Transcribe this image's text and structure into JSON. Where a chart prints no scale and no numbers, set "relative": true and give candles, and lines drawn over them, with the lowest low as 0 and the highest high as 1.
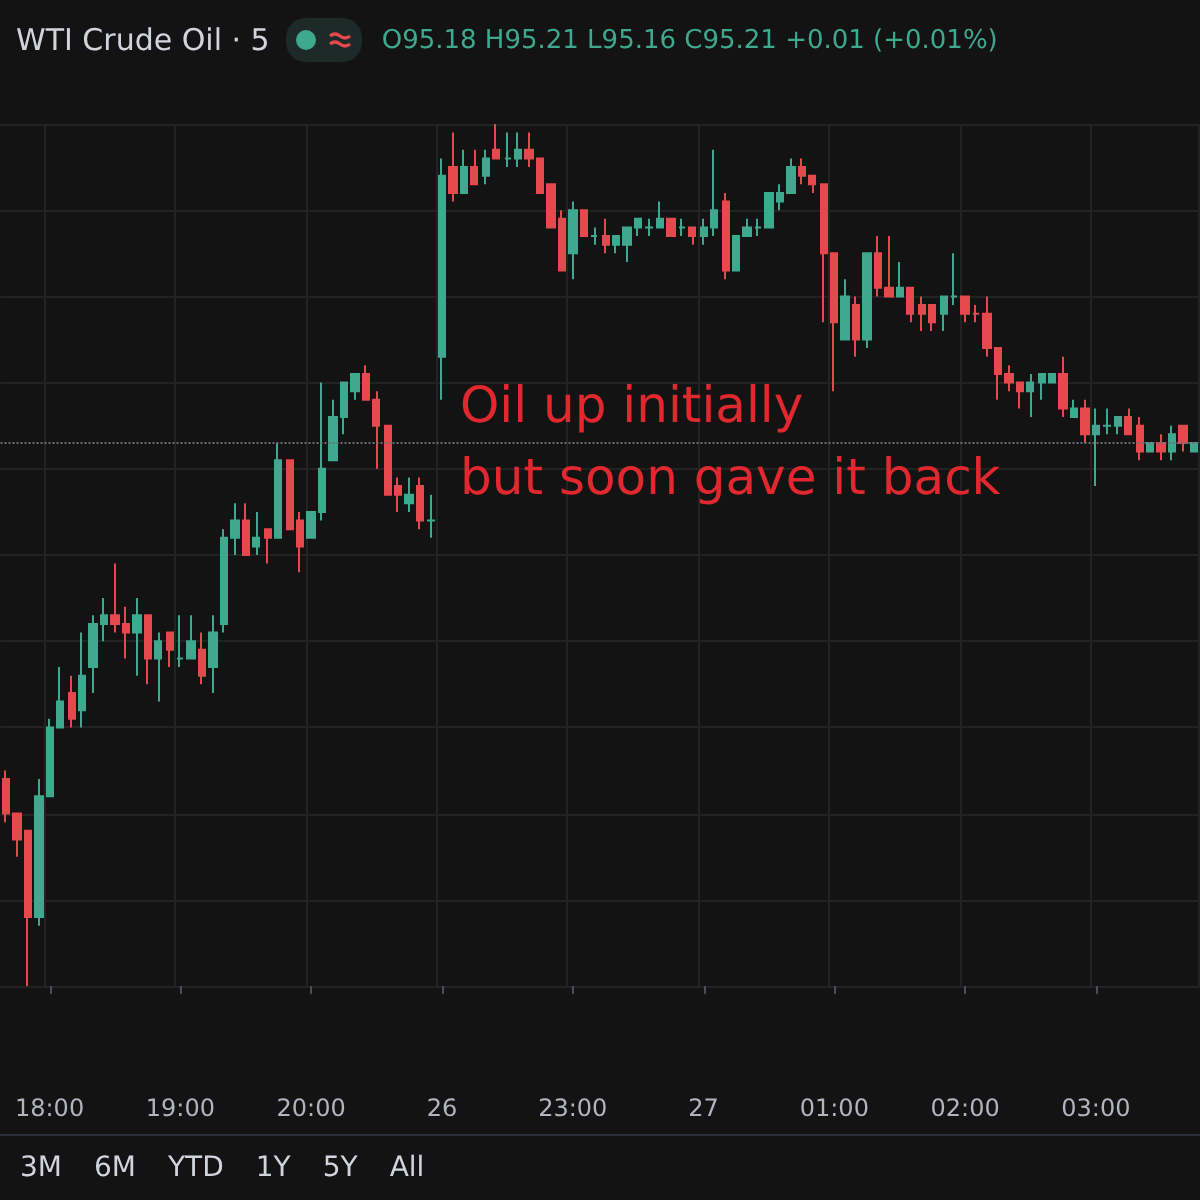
{
  "chart_data": {
    "type": "candlestick",
    "title": "WTI Crude Oil · 5",
    "subtitle": "O95.18 H95.21 L95.16 C95.21 +0.01 (+0.01%)",
    "relative": true,
    "grid": true,
    "annotations": [
      "Oil up initially\nbut soon gave it back",
      "3M",
      "6M",
      "YTD",
      "1Y",
      "5Y",
      "All"
    ],
    "categories": [
      null,
      null,
      null,
      null,
      "18:00",
      null,
      null,
      null,
      null,
      null,
      null,
      null,
      null,
      null,
      null,
      null,
      "19:00",
      null,
      null,
      null,
      null,
      null,
      null,
      null,
      null,
      null,
      null,
      null,
      "20:00",
      null,
      null,
      null,
      null,
      null,
      null,
      null,
      null,
      null,
      null,
      null,
      "26",
      null,
      null,
      null,
      null,
      null,
      null,
      null,
      null,
      null,
      null,
      null,
      "23:00",
      null,
      null,
      null,
      null,
      null,
      null,
      null,
      null,
      null,
      null,
      null,
      "27",
      null,
      null,
      null,
      null,
      null,
      null,
      null,
      null,
      null,
      null,
      null,
      "01:00",
      null,
      null,
      null,
      null,
      null,
      null,
      null,
      null,
      null,
      null,
      null,
      "02:00",
      null,
      null,
      null,
      null,
      null,
      null,
      null,
      null,
      null,
      null,
      null,
      "03:00",
      null,
      null,
      null,
      null,
      null,
      null,
      null,
      null,
      null
    ],
    "ohlc": [
      [
        0.24,
        0.25,
        0.19,
        0.2
      ],
      [
        0.2,
        0.2,
        0.15,
        0.17
      ],
      [
        0.18,
        0.18,
        0,
        0.08
      ],
      [
        0.08,
        0.24,
        0.07,
        0.22
      ],
      [
        0.22,
        0.31,
        0.22,
        0.3
      ],
      [
        0.3,
        0.37,
        0.3,
        0.33
      ],
      [
        0.34,
        0.36,
        0.3,
        0.31
      ],
      [
        0.32,
        0.41,
        0.3,
        0.36
      ],
      [
        0.37,
        0.43,
        0.34,
        0.42
      ],
      [
        0.42,
        0.45,
        0.4,
        0.43
      ],
      [
        0.43,
        0.49,
        0.41,
        0.42
      ],
      [
        0.42,
        0.44,
        0.38,
        0.41
      ],
      [
        0.41,
        0.45,
        0.36,
        0.43
      ],
      [
        0.43,
        0.43,
        0.35,
        0.38
      ],
      [
        0.38,
        0.41,
        0.33,
        0.4
      ],
      [
        0.41,
        0.41,
        0.37,
        0.39
      ],
      [
        0.38,
        0.43,
        0.37,
        0.38
      ],
      [
        0.38,
        0.43,
        0.38,
        0.4
      ],
      [
        0.39,
        0.41,
        0.35,
        0.36
      ],
      [
        0.37,
        0.43,
        0.34,
        0.41
      ],
      [
        0.42,
        0.53,
        0.41,
        0.52
      ],
      [
        0.52,
        0.56,
        0.5,
        0.54
      ],
      [
        0.54,
        0.56,
        0.5,
        0.5
      ],
      [
        0.51,
        0.55,
        0.5,
        0.52
      ],
      [
        0.53,
        0.53,
        0.49,
        0.52
      ],
      [
        0.52,
        0.63,
        0.52,
        0.61
      ],
      [
        0.61,
        0.61,
        0.53,
        0.53
      ],
      [
        0.54,
        0.55,
        0.48,
        0.51
      ],
      [
        0.52,
        0.55,
        0.52,
        0.55
      ],
      [
        0.55,
        0.7,
        0.54,
        0.6
      ],
      [
        0.61,
        0.68,
        0.61,
        0.66
      ],
      [
        0.66,
        0.7,
        0.64,
        0.7
      ],
      [
        0.69,
        0.71,
        0.68,
        0.71
      ],
      [
        0.71,
        0.72,
        0.68,
        0.68
      ],
      [
        0.68,
        0.69,
        0.6,
        0.65
      ],
      [
        0.65,
        0.65,
        0.57,
        0.57
      ],
      [
        0.58,
        0.59,
        0.55,
        0.57
      ],
      [
        0.56,
        0.59,
        0.55,
        0.57
      ],
      [
        0.58,
        0.59,
        0.53,
        0.54
      ],
      [
        0.54,
        0.57,
        0.52,
        0.54
      ],
      [
        0.73,
        0.96,
        0.68,
        0.94
      ],
      [
        0.95,
        0.99,
        0.91,
        0.92
      ],
      [
        0.92,
        0.97,
        0.92,
        0.95
      ],
      [
        0.95,
        0.97,
        0.93,
        0.93
      ],
      [
        0.94,
        0.97,
        0.93,
        0.96
      ],
      [
        0.97,
        1.0,
        0.96,
        0.96
      ],
      [
        0.96,
        0.99,
        0.95,
        0.96
      ],
      [
        0.96,
        0.99,
        0.95,
        0.97
      ],
      [
        0.97,
        0.99,
        0.95,
        0.96
      ],
      [
        0.96,
        0.96,
        0.92,
        0.92
      ],
      [
        0.93,
        0.93,
        0.88,
        0.88
      ],
      [
        0.89,
        0.9,
        0.83,
        0.83
      ],
      [
        0.85,
        0.91,
        0.82,
        0.9
      ],
      [
        0.9,
        0.9,
        0.87,
        0.87
      ],
      [
        0.87,
        0.88,
        0.86,
        0.87
      ],
      [
        0.87,
        0.89,
        0.85,
        0.86
      ],
      [
        0.86,
        0.87,
        0.85,
        0.87
      ],
      [
        0.86,
        0.88,
        0.84,
        0.88
      ],
      [
        0.88,
        0.89,
        0.87,
        0.89
      ],
      [
        0.88,
        0.89,
        0.87,
        0.88
      ],
      [
        0.88,
        0.91,
        0.88,
        0.89
      ],
      [
        0.89,
        0.89,
        0.87,
        0.87
      ],
      [
        0.88,
        0.89,
        0.87,
        0.88
      ],
      [
        0.88,
        0.88,
        0.86,
        0.87
      ],
      [
        0.87,
        0.89,
        0.86,
        0.88
      ],
      [
        0.88,
        0.97,
        0.87,
        0.9
      ],
      [
        0.91,
        0.92,
        0.82,
        0.83
      ],
      [
        0.83,
        0.87,
        0.83,
        0.87
      ],
      [
        0.87,
        0.89,
        0.87,
        0.88
      ],
      [
        0.88,
        0.89,
        0.87,
        0.88
      ],
      [
        0.88,
        0.92,
        0.88,
        0.92
      ],
      [
        0.91,
        0.93,
        0.9,
        0.92
      ],
      [
        0.92,
        0.96,
        0.92,
        0.95
      ],
      [
        0.95,
        0.96,
        0.93,
        0.94
      ],
      [
        0.94,
        0.94,
        0.92,
        0.93
      ],
      [
        0.93,
        0.93,
        0.77,
        0.85
      ],
      [
        0.85,
        0.85,
        0.69,
        0.77
      ],
      [
        0.75,
        0.82,
        0.75,
        0.8
      ],
      [
        0.79,
        0.8,
        0.73,
        0.75
      ],
      [
        0.75,
        0.85,
        0.74,
        0.85
      ],
      [
        0.85,
        0.87,
        0.8,
        0.81
      ],
      [
        0.81,
        0.87,
        0.8,
        0.8
      ],
      [
        0.8,
        0.84,
        0.8,
        0.81
      ],
      [
        0.81,
        0.81,
        0.77,
        0.78
      ],
      [
        0.79,
        0.8,
        0.76,
        0.78
      ],
      [
        0.79,
        0.79,
        0.76,
        0.77
      ],
      [
        0.78,
        0.8,
        0.76,
        0.8
      ],
      [
        0.8,
        0.85,
        0.79,
        0.8
      ],
      [
        0.8,
        0.8,
        0.77,
        0.78
      ],
      [
        0.78,
        0.79,
        0.77,
        0.78
      ],
      [
        0.78,
        0.8,
        0.73,
        0.74
      ],
      [
        0.74,
        0.74,
        0.68,
        0.71
      ],
      [
        0.71,
        0.72,
        0.69,
        0.7
      ],
      [
        0.7,
        0.7,
        0.67,
        0.69
      ],
      [
        0.69,
        0.71,
        0.66,
        0.7
      ],
      [
        0.7,
        0.71,
        0.68,
        0.71
      ],
      [
        0.7,
        0.71,
        0.7,
        0.71
      ],
      [
        0.71,
        0.73,
        0.66,
        0.67
      ],
      [
        0.66,
        0.68,
        0.66,
        0.67
      ],
      [
        0.67,
        0.68,
        0.63,
        0.64
      ],
      [
        0.64,
        0.67,
        0.58,
        0.65
      ],
      [
        0.65,
        0.67,
        0.64,
        0.65
      ],
      [
        0.65,
        0.66,
        0.64,
        0.66
      ],
      [
        0.66,
        0.67,
        0.64,
        0.64
      ],
      [
        0.65,
        0.66,
        0.61,
        0.62
      ],
      [
        0.62,
        0.63,
        0.62,
        0.63
      ],
      [
        0.63,
        0.64,
        0.61,
        0.62
      ],
      [
        0.62,
        0.65,
        0.61,
        0.64
      ],
      [
        0.65,
        0.65,
        0.62,
        0.63
      ],
      [
        0.62,
        0.63,
        0.62,
        0.63
      ]
    ],
    "colors": [
      "#e5484d",
      "#e5484d",
      "#e5484d",
      "#3fa98f",
      "#3fa98f",
      "#3fa98f",
      "#e5484d",
      "#3fa98f",
      "#3fa98f",
      "#3fa98f",
      "#e5484d",
      "#e5484d",
      "#3fa98f",
      "#e5484d",
      "#3fa98f",
      "#e5484d",
      "#3fa98f",
      "#3fa98f",
      "#e5484d",
      "#3fa98f",
      "#3fa98f",
      "#3fa98f",
      "#e5484d",
      "#3fa98f",
      "#e5484d",
      "#3fa98f",
      "#e5484d",
      "#e5484d",
      "#3fa98f",
      "#3fa98f",
      "#3fa98f",
      "#3fa98f",
      "#3fa98f",
      "#e5484d",
      "#e5484d",
      "#e5484d",
      "#e5484d",
      "#3fa98f",
      "#e5484d",
      "#3fa98f",
      "#3fa98f",
      "#e5484d",
      "#3fa98f",
      "#e5484d",
      "#3fa98f",
      "#e5484d",
      "#3fa98f",
      "#3fa98f",
      "#e5484d",
      "#e5484d",
      "#e5484d",
      "#e5484d",
      "#3fa98f",
      "#e5484d",
      "#3fa98f",
      "#e5484d",
      "#3fa98f",
      "#3fa98f",
      "#3fa98f",
      "#3fa98f",
      "#3fa98f",
      "#e5484d",
      "#3fa98f",
      "#e5484d",
      "#3fa98f",
      "#3fa98f",
      "#e5484d",
      "#3fa98f",
      "#3fa98f",
      "#3fa98f",
      "#3fa98f",
      "#3fa98f",
      "#3fa98f",
      "#e5484d",
      "#e5484d",
      "#e5484d",
      "#e5484d",
      "#3fa98f",
      "#e5484d",
      "#3fa98f",
      "#e5484d",
      "#e5484d",
      "#3fa98f",
      "#e5484d",
      "#e5484d",
      "#e5484d",
      "#3fa98f",
      "#3fa98f",
      "#e5484d",
      "#e5484d",
      "#e5484d",
      "#e5484d",
      "#e5484d",
      "#e5484d",
      "#3fa98f",
      "#3fa98f",
      "#3fa98f",
      "#e5484d",
      "#3fa98f",
      "#e5484d",
      "#3fa98f",
      "#3fa98f",
      "#3fa98f",
      "#e5484d",
      "#e5484d",
      "#3fa98f",
      "#e5484d",
      "#3fa98f",
      "#e5484d",
      "#3fa98f"
    ],
    "ref_lines": [
      {
        "axis": "y",
        "value": 0.63,
        "line_style": "dotted",
        "color": "#6b6f78"
      }
    ]
  }
}
